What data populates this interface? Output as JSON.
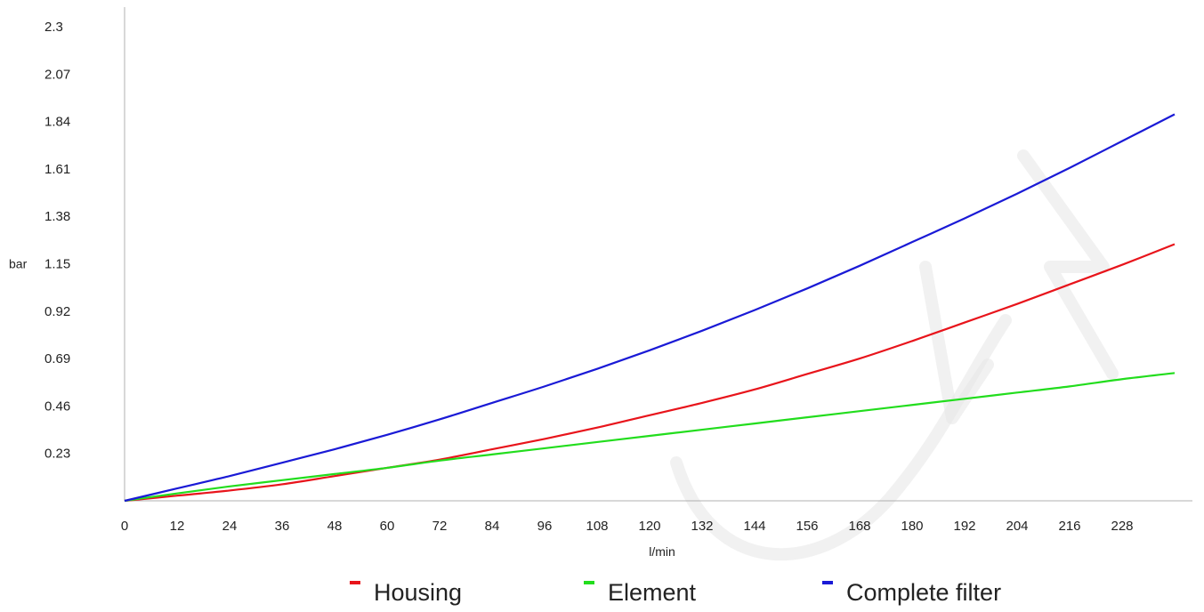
{
  "chart_data": {
    "type": "line",
    "xlabel": "l/min",
    "ylabel": "bar",
    "xlim": [
      0,
      240
    ],
    "ylim": [
      0,
      2.3
    ],
    "x_ticks": [
      "0",
      "12",
      "24",
      "36",
      "48",
      "60",
      "72",
      "84",
      "96",
      "108",
      "120",
      "132",
      "144",
      "156",
      "168",
      "180",
      "192",
      "204",
      "216",
      "228"
    ],
    "y_ticks": [
      "0.23",
      "0.46",
      "0.69",
      "0.92",
      "1.15",
      "1.38",
      "1.61",
      "1.84",
      "2.07",
      "2.3"
    ],
    "grid": false,
    "legend_position": "bottom",
    "x": [
      0,
      12,
      24,
      36,
      48,
      60,
      72,
      84,
      96,
      108,
      120,
      132,
      144,
      156,
      168,
      180,
      192,
      204,
      216,
      228,
      240
    ],
    "series": [
      {
        "name": "Housing",
        "color": "#e8141b",
        "values": [
          0,
          0.025,
          0.05,
          0.08,
          0.12,
          0.16,
          0.2,
          0.25,
          0.3,
          0.355,
          0.415,
          0.475,
          0.54,
          0.615,
          0.69,
          0.775,
          0.865,
          0.955,
          1.05,
          1.145,
          1.245
        ]
      },
      {
        "name": "Element",
        "color": "#22dd1d",
        "values": [
          0,
          0.036,
          0.07,
          0.1,
          0.13,
          0.16,
          0.195,
          0.225,
          0.255,
          0.285,
          0.315,
          0.345,
          0.375,
          0.405,
          0.435,
          0.465,
          0.495,
          0.525,
          0.555,
          0.59,
          0.62
        ]
      },
      {
        "name": "Complete filter",
        "color": "#1a1ad6",
        "values": [
          0,
          0.06,
          0.12,
          0.185,
          0.25,
          0.32,
          0.395,
          0.475,
          0.555,
          0.64,
          0.73,
          0.825,
          0.925,
          1.03,
          1.14,
          1.255,
          1.37,
          1.49,
          1.615,
          1.745,
          1.875
        ]
      }
    ]
  }
}
